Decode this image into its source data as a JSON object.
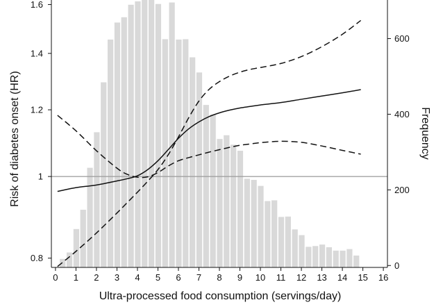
{
  "chart_data": {
    "type": "bar",
    "xlabel": "Ultra-processed food consumption (servings/day)",
    "ylabel": "Risk of diabetes onset (HR)",
    "ylabel_right": "Frequency",
    "x_ticks": [
      "0",
      "1",
      "2",
      "3",
      "4",
      "5",
      "6",
      "7",
      "8",
      "9",
      "10",
      "11",
      "12",
      "13",
      "14",
      "15",
      "16"
    ],
    "y_ticks_left": [
      "0.8",
      "1",
      "1.2",
      "1.4",
      "1.6"
    ],
    "y_ticks_right": [
      "0",
      "200",
      "400",
      "600"
    ],
    "xlim": [
      -0.2,
      16.2
    ],
    "ylim_left_hr_log": [
      0.78,
      1.62
    ],
    "ylim_right": [
      -5,
      702
    ],
    "reference_line_hr": 1.0,
    "histogram": {
      "bin_width": 0.333,
      "bin_starts": [
        0.2,
        0.533,
        0.867,
        1.2,
        1.533,
        1.867,
        2.2,
        2.533,
        2.867,
        3.2,
        3.533,
        3.867,
        4.2,
        4.533,
        4.867,
        5.2,
        5.533,
        5.867,
        6.2,
        6.533,
        6.867,
        7.2,
        7.533,
        7.867,
        8.2,
        8.533,
        8.867,
        9.2,
        9.533,
        9.867,
        10.2,
        10.533,
        10.867,
        11.2,
        11.533,
        11.867,
        12.2,
        12.533,
        12.867,
        13.2,
        13.533,
        13.867,
        14.2,
        14.533
      ],
      "counts": [
        18,
        35,
        97,
        148,
        259,
        353,
        485,
        598,
        643,
        657,
        690,
        699,
        730,
        716,
        692,
        599,
        696,
        598,
        599,
        551,
        511,
        425,
        400,
        335,
        345,
        320,
        304,
        230,
        227,
        211,
        171,
        173,
        129,
        130,
        96,
        81,
        50,
        52,
        56,
        49,
        40,
        40,
        44,
        27
      ]
    },
    "series": [
      {
        "style": "solid",
        "x": [
          0.1,
          1,
          2,
          3,
          3.5,
          4,
          4.5,
          5,
          5.5,
          6,
          6.5,
          7,
          7.5,
          8,
          8.5,
          9,
          9.5,
          10,
          11,
          12,
          13,
          14,
          14.9
        ],
        "y": [
          0.96,
          0.97,
          0.977,
          0.988,
          0.994,
          1.002,
          1.019,
          1.044,
          1.076,
          1.11,
          1.139,
          1.161,
          1.178,
          1.19,
          1.199,
          1.206,
          1.211,
          1.216,
          1.224,
          1.235,
          1.246,
          1.257,
          1.268
        ]
      },
      {
        "style": "dashed",
        "x": [
          0.1,
          1,
          2,
          3,
          3.5,
          4,
          4.5,
          5,
          5.5,
          6,
          6.5,
          7,
          7.5,
          8,
          8.5,
          9,
          9.5,
          10,
          11,
          12,
          13,
          14,
          14.9
        ],
        "y": [
          0.782,
          0.815,
          0.857,
          0.905,
          0.931,
          0.958,
          0.987,
          1.019,
          1.061,
          1.114,
          1.174,
          1.229,
          1.269,
          1.296,
          1.316,
          1.33,
          1.34,
          1.347,
          1.362,
          1.388,
          1.426,
          1.475,
          1.532
        ]
      },
      {
        "style": "dashed",
        "x": [
          0.1,
          1,
          2,
          3,
          3.5,
          4,
          4.5,
          5,
          5.5,
          6,
          6.5,
          7,
          7.5,
          8,
          8.5,
          9,
          9.5,
          10,
          11,
          12,
          13,
          14,
          14.9
        ],
        "y": [
          1.182,
          1.133,
          1.073,
          1.023,
          1.006,
          0.998,
          0.999,
          1.011,
          1.029,
          1.044,
          1.053,
          1.061,
          1.069,
          1.076,
          1.083,
          1.089,
          1.093,
          1.097,
          1.101,
          1.098,
          1.087,
          1.074,
          1.063
        ]
      }
    ],
    "grid": false,
    "legend": "none"
  }
}
